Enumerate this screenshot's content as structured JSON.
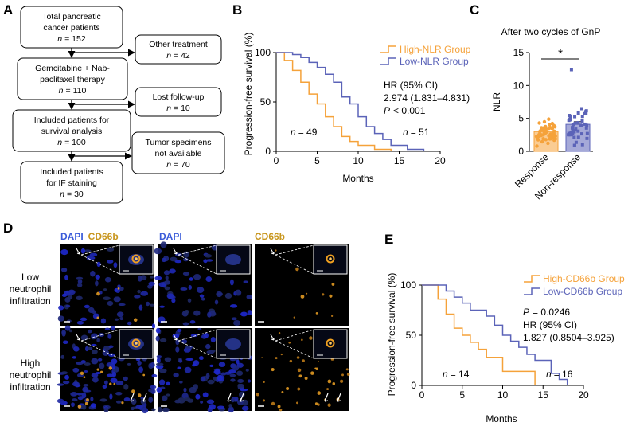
{
  "panel_labels": {
    "a": "A",
    "b": "B",
    "c": "C",
    "d": "D",
    "e": "E"
  },
  "flowchart": {
    "boxes": [
      {
        "lines": [
          "Total pancreatic",
          "cancer patients"
        ],
        "n": "= 152"
      },
      {
        "lines": [
          "Gemcitabine + Nab-",
          "paclitaxel therapy"
        ],
        "n": "= 110"
      },
      {
        "lines": [
          "Included patients for",
          "survival analysis"
        ],
        "n": "= 100"
      },
      {
        "lines": [
          "Included patients",
          "for IF staining"
        ],
        "n": "= 30"
      }
    ],
    "side_boxes": [
      {
        "lines": [
          "Other treatment"
        ],
        "n": "= 42"
      },
      {
        "lines": [
          "Lost follow-up"
        ],
        "n": "= 10"
      },
      {
        "lines": [
          "Tumor specimens",
          "not available"
        ],
        "n": "= 70"
      }
    ],
    "n_symbol": "n"
  },
  "km_b": {
    "ylabel": "Progression-free survival (%)",
    "xlabel": "Months",
    "legend": [
      "High-NLR Group",
      "Low-NLR Group"
    ],
    "stats": [
      "HR (95% CI)",
      "2.974 (1.831–4.831)",
      "< 0.001"
    ],
    "p_symbol": "P",
    "n_labels": [
      "= 49",
      "= 51"
    ],
    "xticks": [
      "0",
      "5",
      "10",
      "15",
      "20"
    ],
    "yticks": [
      "0",
      "50",
      "100"
    ]
  },
  "bar_c": {
    "title": "After two cycles of GnP",
    "ylabel": "NLR",
    "categories": [
      "Response",
      "Non-response"
    ],
    "yticks": [
      "0",
      "5",
      "10",
      "15"
    ],
    "sig": "*"
  },
  "if_panel": {
    "headers": [
      [
        "DAPI",
        "CD66b"
      ],
      [
        "DAPI"
      ],
      [
        "CD66b"
      ]
    ],
    "rows": [
      [
        "Low",
        "neutrophil",
        "infiltration"
      ],
      [
        "High",
        "neutrophil",
        "infiltration"
      ]
    ]
  },
  "km_e": {
    "ylabel": "Progression-free survival (%)",
    "xlabel": "Months",
    "legend": [
      "High-CD66b Group",
      "Low-CD66b Group"
    ],
    "stats": [
      "= 0.0246",
      "HR (95% CI)",
      "1.827 (0.8504–3.925)"
    ],
    "p_symbol": "P",
    "n_labels": [
      "= 14",
      "= 16"
    ],
    "xticks": [
      "0",
      "5",
      "10",
      "15",
      "20"
    ],
    "yticks": [
      "0",
      "50",
      "100"
    ]
  },
  "colors": {
    "high": "#f5a23a",
    "low": "#5b63b8",
    "dapi": "#3a5bd9",
    "cd66b": "#c8961e"
  },
  "chart_data": [
    {
      "type": "line",
      "title": "",
      "xlabel": "Months",
      "ylabel": "Progression-free survival (%)",
      "xlim": [
        0,
        20
      ],
      "ylim": [
        0,
        100
      ],
      "series": [
        {
          "name": "High-NLR Group",
          "x": [
            0,
            1,
            2,
            3,
            4,
            5,
            6,
            7,
            8,
            9,
            10,
            12,
            14
          ],
          "y": [
            100,
            92,
            82,
            70,
            58,
            48,
            35,
            25,
            15,
            10,
            6,
            2,
            0
          ]
        },
        {
          "name": "Low-NLR Group",
          "x": [
            0,
            2,
            3,
            4,
            5,
            6,
            7,
            8,
            9,
            10,
            11,
            12,
            13,
            14,
            16,
            18
          ],
          "y": [
            100,
            98,
            95,
            90,
            85,
            78,
            70,
            55,
            48,
            35,
            25,
            18,
            12,
            6,
            2,
            0
          ]
        }
      ]
    },
    {
      "type": "bar",
      "title": "After two cycles of GnP",
      "categories": [
        "Response",
        "Non-response"
      ],
      "values": [
        3.0,
        4.1
      ],
      "ylabel": "NLR",
      "ylim": [
        0,
        15
      ]
    },
    {
      "type": "line",
      "title": "",
      "xlabel": "Months",
      "ylabel": "Progression-free survival (%)",
      "xlim": [
        0,
        20
      ],
      "ylim": [
        0,
        100
      ],
      "series": [
        {
          "name": "High-CD66b Group",
          "x": [
            0,
            2,
            3,
            4,
            5,
            6,
            7,
            8,
            10,
            14
          ],
          "y": [
            100,
            86,
            71,
            57,
            50,
            43,
            36,
            28,
            14,
            0
          ]
        },
        {
          "name": "Low-CD66b Group",
          "x": [
            0,
            3,
            4,
            5,
            6,
            8,
            9,
            10,
            11,
            12,
            13,
            14,
            16,
            17,
            18
          ],
          "y": [
            100,
            94,
            88,
            82,
            75,
            69,
            60,
            50,
            44,
            38,
            31,
            25,
            12,
            6,
            0
          ]
        }
      ]
    }
  ]
}
